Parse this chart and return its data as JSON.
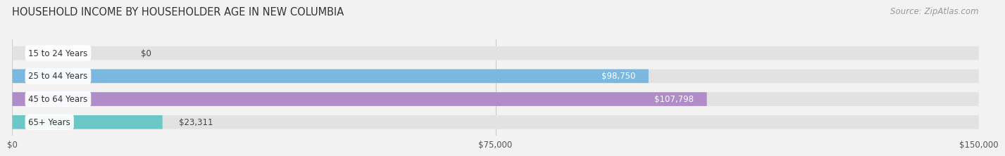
{
  "title": "HOUSEHOLD INCOME BY HOUSEHOLDER AGE IN NEW COLUMBIA",
  "source": "Source: ZipAtlas.com",
  "categories": [
    "15 to 24 Years",
    "25 to 44 Years",
    "45 to 64 Years",
    "65+ Years"
  ],
  "values": [
    0,
    98750,
    107798,
    23311
  ],
  "bar_colors": [
    "#f2a0a8",
    "#7ab8e0",
    "#b08cc8",
    "#6cc8c8"
  ],
  "value_labels": [
    "$0",
    "$98,750",
    "$107,798",
    "$23,311"
  ],
  "x_ticks": [
    0,
    75000,
    150000
  ],
  "x_tick_labels": [
    "$0",
    "$75,000",
    "$150,000"
  ],
  "xlim": [
    0,
    150000
  ],
  "background_color": "#f2f2f2",
  "bar_background_color": "#e2e2e2",
  "title_fontsize": 10.5,
  "source_fontsize": 8.5,
  "label_fontsize": 8.5,
  "value_fontsize": 8.5
}
